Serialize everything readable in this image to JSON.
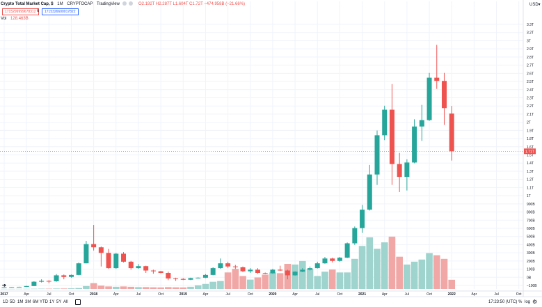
{
  "header": {
    "symbol_title": "Crypto Total Market Cap, $",
    "interval": "1M",
    "exchange": "CRYPTOCAP",
    "source": "TradingView",
    "ohlc_text": "O2.192T H2.287T L1.604T C1.72T −474.958B (−21.66%)",
    "input1": "1715299999678312",
    "input1_sep": "6",
    "input2": "1715326600017822",
    "vol_label": "Vol",
    "vol_value": "128.463B"
  },
  "price_axis": {
    "currency": "USD",
    "current_price_label": "1.71T",
    "labels": [
      "3.3T",
      "3.2T",
      "3T",
      "2.9T",
      "2.8T",
      "2.7T",
      "2.6T",
      "2.5T",
      "2.4T",
      "2.3T",
      "2.2T",
      "2.1T",
      "2T",
      "1.9T",
      "1.8T",
      "1.6T",
      "1.5T",
      "1.4T",
      "1.3T",
      "1.2T",
      "1.1T",
      "1T",
      "900B",
      "800B",
      "700B",
      "600B",
      "500B",
      "400B",
      "300B",
      "200B",
      "100B",
      "0B",
      "−100B"
    ]
  },
  "time_axis": {
    "labels": [
      "2017",
      "Apr",
      "Jul",
      "Oct",
      "2018",
      "Apr",
      "Jul",
      "Oct",
      "2019",
      "Apr",
      "Jul",
      "Oct",
      "2020",
      "Apr",
      "Jul",
      "Oct",
      "2021",
      "Apr",
      "Jul",
      "Oct",
      "2022",
      "Apr",
      "Jul",
      "Oct"
    ],
    "bold": [
      "2017",
      "2018",
      "2019",
      "2020",
      "2021",
      "2022"
    ]
  },
  "bottom_bar": {
    "timeframes": [
      "1D",
      "5D",
      "1M",
      "3M",
      "6M",
      "YTD",
      "1Y",
      "5Y",
      "All"
    ],
    "clock": "17:23:50 (UTC)",
    "percent_label": "%",
    "log_label": "log",
    "auto_label": "auto"
  },
  "colors": {
    "up": "#26a69a",
    "down": "#ef5350",
    "vol_up": "#9fd3cd",
    "vol_down": "#f0a7a5",
    "grid": "#f0f3fa",
    "current_line": "#ef5350"
  },
  "chart_data": {
    "type": "candlestick",
    "title": "Crypto Total Market Cap, $ · 1M · CRYPTOCAP",
    "unit": "USD",
    "interval": "monthly",
    "price_range": [
      0,
      3350000000000.0
    ],
    "volume_range": [
      0,
      1050000000000.0
    ],
    "candles": [
      {
        "date": "2017-01",
        "o": 18000000000.0,
        "h": 20000000000.0,
        "l": 17000000000.0,
        "c": 19000000000.0,
        "v": 1000000000.0
      },
      {
        "date": "2017-02",
        "o": 19000000000.0,
        "h": 23000000000.0,
        "l": 19000000000.0,
        "c": 22000000000.0,
        "v": 1000000000.0
      },
      {
        "date": "2017-03",
        "o": 22000000000.0,
        "h": 28000000000.0,
        "l": 21000000000.0,
        "c": 26000000000.0,
        "v": 2000000000.0
      },
      {
        "date": "2017-04",
        "o": 26000000000.0,
        "h": 38000000000.0,
        "l": 25000000000.0,
        "c": 36000000000.0,
        "v": 2000000000.0
      },
      {
        "date": "2017-05",
        "o": 36000000000.0,
        "h": 95000000000.0,
        "l": 35000000000.0,
        "c": 90000000000.0,
        "v": 3000000000.0
      },
      {
        "date": "2017-06",
        "o": 90000000000.0,
        "h": 120000000000.0,
        "l": 80000000000.0,
        "c": 100000000000.0,
        "v": 4000000000.0
      },
      {
        "date": "2017-07",
        "o": 100000000000.0,
        "h": 110000000000.0,
        "l": 70000000000.0,
        "c": 95000000000.0,
        "v": 4000000000.0
      },
      {
        "date": "2017-08",
        "o": 95000000000.0,
        "h": 185000000000.0,
        "l": 90000000000.0,
        "c": 170000000000.0,
        "v": 6000000000.0
      },
      {
        "date": "2017-09",
        "o": 170000000000.0,
        "h": 180000000000.0,
        "l": 120000000000.0,
        "c": 150000000000.0,
        "v": 6000000000.0
      },
      {
        "date": "2017-10",
        "o": 150000000000.0,
        "h": 180000000000.0,
        "l": 140000000000.0,
        "c": 175000000000.0,
        "v": 8000000000.0
      },
      {
        "date": "2017-11",
        "o": 175000000000.0,
        "h": 330000000000.0,
        "l": 170000000000.0,
        "c": 320000000000.0,
        "v": 12000000000.0
      },
      {
        "date": "2017-12",
        "o": 320000000000.0,
        "h": 600000000000.0,
        "l": 320000000000.0,
        "c": 560000000000.0,
        "v": 40000000000.0
      },
      {
        "date": "2018-01",
        "o": 560000000000.0,
        "h": 800000000000.0,
        "l": 480000000000.0,
        "c": 520000000000.0,
        "v": 80000000000.0
      },
      {
        "date": "2018-02",
        "o": 520000000000.0,
        "h": 530000000000.0,
        "l": 280000000000.0,
        "c": 450000000000.0,
        "v": 45000000000.0
      },
      {
        "date": "2018-03",
        "o": 450000000000.0,
        "h": 500000000000.0,
        "l": 250000000000.0,
        "c": 260000000000.0,
        "v": 35000000000.0
      },
      {
        "date": "2018-04",
        "o": 260000000000.0,
        "h": 450000000000.0,
        "l": 250000000000.0,
        "c": 440000000000.0,
        "v": 30000000000.0
      },
      {
        "date": "2018-05",
        "o": 440000000000.0,
        "h": 460000000000.0,
        "l": 330000000000.0,
        "c": 340000000000.0,
        "v": 35000000000.0
      },
      {
        "date": "2018-06",
        "o": 340000000000.0,
        "h": 350000000000.0,
        "l": 240000000000.0,
        "c": 260000000000.0,
        "v": 30000000000.0
      },
      {
        "date": "2018-07",
        "o": 260000000000.0,
        "h": 310000000000.0,
        "l": 250000000000.0,
        "c": 285000000000.0,
        "v": 25000000000.0
      },
      {
        "date": "2018-08",
        "o": 285000000000.0,
        "h": 290000000000.0,
        "l": 200000000000.0,
        "c": 230000000000.0,
        "v": 25000000000.0
      },
      {
        "date": "2018-09",
        "o": 230000000000.0,
        "h": 240000000000.0,
        "l": 190000000000.0,
        "c": 220000000000.0,
        "v": 22000000000.0
      },
      {
        "date": "2018-10",
        "o": 220000000000.0,
        "h": 225000000000.0,
        "l": 195000000000.0,
        "c": 200000000000.0,
        "v": 20000000000.0
      },
      {
        "date": "2018-11",
        "o": 200000000000.0,
        "h": 215000000000.0,
        "l": 110000000000.0,
        "c": 130000000000.0,
        "v": 25000000000.0
      },
      {
        "date": "2018-12",
        "o": 130000000000.0,
        "h": 140000000000.0,
        "l": 100000000000.0,
        "c": 125000000000.0,
        "v": 22000000000.0
      },
      {
        "date": "2019-01",
        "o": 125000000000.0,
        "h": 135000000000.0,
        "l": 110000000000.0,
        "c": 115000000000.0,
        "v": 20000000000.0
      },
      {
        "date": "2019-02",
        "o": 115000000000.0,
        "h": 140000000000.0,
        "l": 110000000000.0,
        "c": 135000000000.0,
        "v": 30000000000.0
      },
      {
        "date": "2019-03",
        "o": 135000000000.0,
        "h": 145000000000.0,
        "l": 130000000000.0,
        "c": 140000000000.0,
        "v": 50000000000.0
      },
      {
        "date": "2019-04",
        "o": 140000000000.0,
        "h": 185000000000.0,
        "l": 135000000000.0,
        "c": 175000000000.0,
        "v": 70000000000.0
      },
      {
        "date": "2019-05",
        "o": 175000000000.0,
        "h": 270000000000.0,
        "l": 170000000000.0,
        "c": 260000000000.0,
        "v": 100000000000.0
      },
      {
        "date": "2019-06",
        "o": 260000000000.0,
        "h": 380000000000.0,
        "l": 250000000000.0,
        "c": 320000000000.0,
        "v": 110000000000.0
      },
      {
        "date": "2019-07",
        "o": 320000000000.0,
        "h": 340000000000.0,
        "l": 260000000000.0,
        "c": 280000000000.0,
        "v": 230000000000.0
      },
      {
        "date": "2019-08",
        "o": 280000000000.0,
        "h": 300000000000.0,
        "l": 250000000000.0,
        "c": 270000000000.0,
        "v": 280000000000.0
      },
      {
        "date": "2019-09",
        "o": 270000000000.0,
        "h": 280000000000.0,
        "l": 210000000000.0,
        "c": 220000000000.0,
        "v": 180000000000.0
      },
      {
        "date": "2019-10",
        "o": 220000000000.0,
        "h": 260000000000.0,
        "l": 200000000000.0,
        "c": 240000000000.0,
        "v": 130000000000.0
      },
      {
        "date": "2019-11",
        "o": 240000000000.0,
        "h": 260000000000.0,
        "l": 190000000000.0,
        "c": 200000000000.0,
        "v": 160000000000.0
      },
      {
        "date": "2019-12",
        "o": 200000000000.0,
        "h": 205000000000.0,
        "l": 185000000000.0,
        "c": 195000000000.0,
        "v": 200000000000.0
      },
      {
        "date": "2020-01",
        "o": 195000000000.0,
        "h": 250000000000.0,
        "l": 190000000000.0,
        "c": 240000000000.0,
        "v": 230000000000.0
      },
      {
        "date": "2020-02",
        "o": 240000000000.0,
        "h": 290000000000.0,
        "l": 225000000000.0,
        "c": 230000000000.0,
        "v": 220000000000.0
      },
      {
        "date": "2020-03",
        "o": 230000000000.0,
        "h": 240000000000.0,
        "l": 120000000000.0,
        "c": 170000000000.0,
        "v": 350000000000.0
      },
      {
        "date": "2020-04",
        "o": 170000000000.0,
        "h": 220000000000.0,
        "l": 165000000000.0,
        "c": 215000000000.0,
        "v": 340000000000.0
      },
      {
        "date": "2020-05",
        "o": 215000000000.0,
        "h": 260000000000.0,
        "l": 210000000000.0,
        "c": 240000000000.0,
        "v": 390000000000.0
      },
      {
        "date": "2020-06",
        "o": 240000000000.0,
        "h": 280000000000.0,
        "l": 230000000000.0,
        "c": 260000000000.0,
        "v": 280000000000.0
      },
      {
        "date": "2020-07",
        "o": 260000000000.0,
        "h": 340000000000.0,
        "l": 255000000000.0,
        "c": 320000000000.0,
        "v": 180000000000.0
      },
      {
        "date": "2020-08",
        "o": 320000000000.0,
        "h": 400000000000.0,
        "l": 315000000000.0,
        "c": 380000000000.0,
        "v": 240000000000.0
      },
      {
        "date": "2020-09",
        "o": 380000000000.0,
        "h": 390000000000.0,
        "l": 330000000000.0,
        "c": 350000000000.0,
        "v": 270000000000.0
      },
      {
        "date": "2020-10",
        "o": 350000000000.0,
        "h": 400000000000.0,
        "l": 340000000000.0,
        "c": 390000000000.0,
        "v": 230000000000.0
      },
      {
        "date": "2020-11",
        "o": 390000000000.0,
        "h": 580000000000.0,
        "l": 385000000000.0,
        "c": 570000000000.0,
        "v": 230000000000.0
      },
      {
        "date": "2020-12",
        "o": 570000000000.0,
        "h": 780000000000.0,
        "l": 550000000000.0,
        "c": 760000000000.0,
        "v": 420000000000.0
      },
      {
        "date": "2021-01",
        "o": 760000000000.0,
        "h": 1050000000000.0,
        "l": 700000000000.0,
        "c": 990000000000.0,
        "v": 600000000000.0
      },
      {
        "date": "2021-02",
        "o": 990000000000.0,
        "h": 1550000000000.0,
        "l": 980000000000.0,
        "c": 1430000000000.0,
        "v": 720000000000.0
      },
      {
        "date": "2021-03",
        "o": 1430000000000.0,
        "h": 1980000000000.0,
        "l": 1300000000000.0,
        "c": 1920000000000.0,
        "v": 560000000000.0
      },
      {
        "date": "2021-04",
        "o": 1920000000000.0,
        "h": 2290000000000.0,
        "l": 1860000000000.0,
        "c": 2240000000000.0,
        "v": 650000000000.0
      },
      {
        "date": "2021-05",
        "o": 2240000000000.0,
        "h": 2560000000000.0,
        "l": 1300000000000.0,
        "c": 1560000000000.0,
        "v": 730000000000.0
      },
      {
        "date": "2021-06",
        "o": 1560000000000.0,
        "h": 1700000000000.0,
        "l": 1210000000000.0,
        "c": 1400000000000.0,
        "v": 450000000000.0
      },
      {
        "date": "2021-07",
        "o": 1400000000000.0,
        "h": 1620000000000.0,
        "l": 1230000000000.0,
        "c": 1580000000000.0,
        "v": 340000000000.0
      },
      {
        "date": "2021-08",
        "o": 1580000000000.0,
        "h": 2120000000000.0,
        "l": 1570000000000.0,
        "c": 2030000000000.0,
        "v": 380000000000.0
      },
      {
        "date": "2021-09",
        "o": 2030000000000.0,
        "h": 2300000000000.0,
        "l": 1850000000000.0,
        "c": 2110000000000.0,
        "v": 410000000000.0
      },
      {
        "date": "2021-10",
        "o": 2110000000000.0,
        "h": 2700000000000.0,
        "l": 2100000000000.0,
        "c": 2640000000000.0,
        "v": 500000000000.0
      },
      {
        "date": "2021-11",
        "o": 2640000000000.0,
        "h": 3050000000000.0,
        "l": 2500000000000.0,
        "c": 2600000000000.0,
        "v": 470000000000.0
      },
      {
        "date": "2021-12",
        "o": 2600000000000.0,
        "h": 2700000000000.0,
        "l": 2050000000000.0,
        "c": 2260000000000.0,
        "v": 420000000000.0
      },
      {
        "date": "2022-01",
        "o": 2192000000000.0,
        "h": 2287000000000.0,
        "l": 1604000000000.0,
        "c": 1720000000000.0,
        "v": 128000000000.0
      }
    ]
  }
}
